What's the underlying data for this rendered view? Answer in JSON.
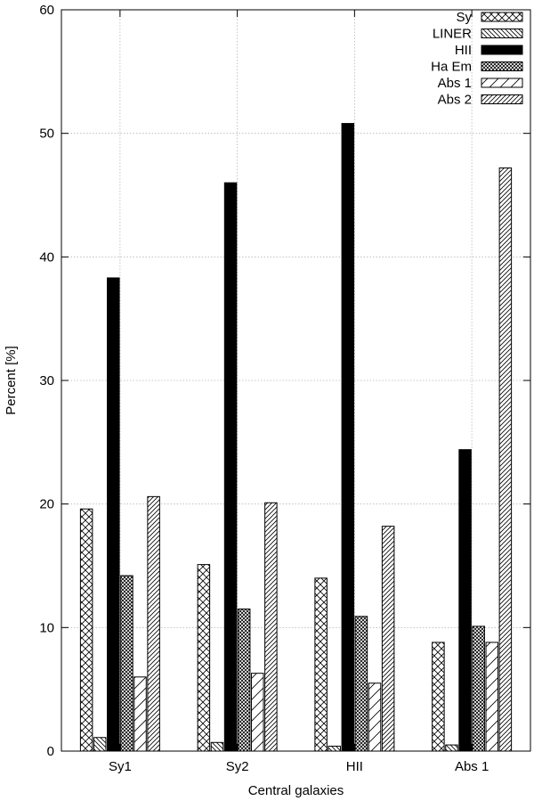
{
  "chart_data": {
    "type": "bar",
    "xlabel": "Central galaxies",
    "ylabel": "Percent [%]",
    "ylim": [
      0,
      60
    ],
    "yticks": [
      "0",
      "10",
      "20",
      "30",
      "40",
      "50",
      "60"
    ],
    "grid": true,
    "legend_position": "top-right",
    "categories": [
      "Sy1",
      "Sy2",
      "HII",
      "Abs 1"
    ],
    "series": [
      {
        "name": "Sy",
        "pattern": "crosshatch",
        "values": [
          19.6,
          15.1,
          14.0,
          8.8
        ]
      },
      {
        "name": "LINER",
        "pattern": "backslash",
        "values": [
          1.1,
          0.7,
          0.4,
          0.5
        ]
      },
      {
        "name": "HII",
        "pattern": "solid",
        "values": [
          38.3,
          46.0,
          50.8,
          24.4
        ]
      },
      {
        "name": "Ha Em",
        "pattern": "dense-cross",
        "values": [
          14.2,
          11.5,
          10.9,
          10.1
        ]
      },
      {
        "name": "Abs 1",
        "pattern": "sparse-slash",
        "values": [
          6.0,
          6.3,
          5.5,
          8.8
        ]
      },
      {
        "name": "Abs 2",
        "pattern": "dense-slash",
        "values": [
          20.6,
          20.1,
          18.2,
          47.2
        ]
      }
    ]
  }
}
